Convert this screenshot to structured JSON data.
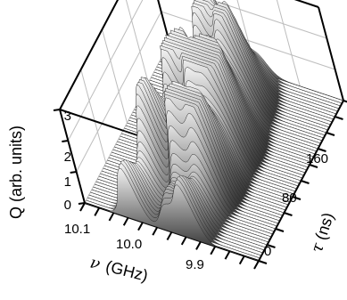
{
  "chart_data": {
    "type": "surface-3d",
    "title": "",
    "zlabel": "Q (arb. units)",
    "xlabel_symbol": "ν",
    "xlabel_unit": "(GHz)",
    "ylabel_symbol": "τ",
    "ylabel_unit": "(ns)",
    "z_ticks": [
      "0",
      "1",
      "2",
      "3"
    ],
    "x_ticks": [
      "10.1",
      "10.0",
      "9.9"
    ],
    "y_ticks": [
      "0",
      "80",
      "160"
    ],
    "xlim": [
      9.85,
      10.15
    ],
    "ylim": [
      0,
      200
    ],
    "zlim": [
      0,
      3
    ],
    "grid": true,
    "surface": {
      "description_series": [
        {
          "tau": 0,
          "peaks_nu": [
            10.07,
            9.97
          ],
          "peak_q": 1.0
        },
        {
          "tau": 40,
          "peaks_nu": [
            10.06,
            10.0,
            9.96
          ],
          "peak_q": 1.6
        },
        {
          "tau": 80,
          "peaks_nu": [
            10.05,
            10.01,
            9.98,
            9.95
          ],
          "peak_q": 2.2
        },
        {
          "tau": 120,
          "peaks_nu": [
            10.04,
            10.0,
            9.97
          ],
          "peak_q": 2.8
        },
        {
          "tau": 160,
          "peaks_nu": [
            10.03,
            9.99
          ],
          "peak_q": 2.4
        },
        {
          "tau": 200,
          "peaks_nu": [
            10.02
          ],
          "peak_q": 1.8
        }
      ]
    }
  }
}
